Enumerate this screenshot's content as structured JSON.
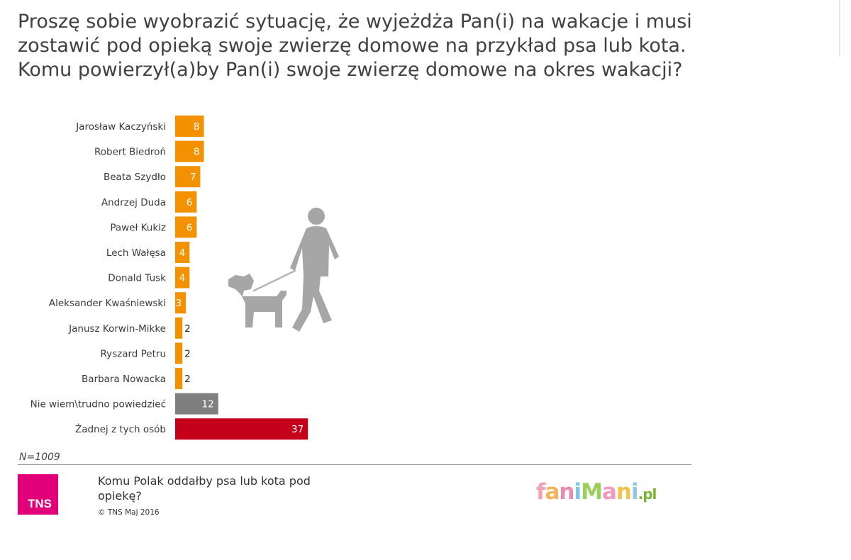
{
  "question": "Proszę sobie wyobrazić sytuację, że wyjeżdża Pan(i) na wakacje i musi zostawić pod opieką swoje zwierzę domowe na przykład psa lub kota. Komu powierzył(a)by Pan(i) swoje zwierzę domowe na okres wakacji?",
  "colors": {
    "orange": "#f39100",
    "gray": "#7f7f7f",
    "red": "#c5001a"
  },
  "icons": {
    "silhouette": "man-walking-dog-icon"
  },
  "chart_data": {
    "type": "bar",
    "orientation": "horizontal",
    "title": "Proszę sobie wyobrazić sytuację, że wyjeżdża Pan(i) na wakacje i musi zostawić pod opieką swoje zwierzę domowe na przykład psa lub kota. Komu powierzył(a)by Pan(i) swoje zwierzę domowe na okres wakacji?",
    "categories": [
      "Jarosław Kaczyński",
      "Robert Biedroń",
      "Beata Szydło",
      "Andrzej Duda",
      "Paweł Kukiz",
      "Lech Wałęsa",
      "Donald Tusk",
      "Aleksander Kwaśniewski",
      "Janusz Korwin-Mikke",
      "Ryszard Petru",
      "Barbara Nowacka",
      "Nie wiem\\trudno powiedzieć",
      "Żadnej z tych osób"
    ],
    "values": [
      8,
      8,
      7,
      6,
      6,
      4,
      4,
      3,
      2,
      2,
      2,
      12,
      37
    ],
    "bar_colors": [
      "#f39100",
      "#f39100",
      "#f39100",
      "#f39100",
      "#f39100",
      "#f39100",
      "#f39100",
      "#f39100",
      "#f39100",
      "#f39100",
      "#f39100",
      "#7f7f7f",
      "#c5001a"
    ],
    "xlim": [
      0,
      37
    ],
    "grid": false
  },
  "footer": {
    "n": "N=1009",
    "subtitle": "Komu Polak oddałby psa lub kota pod opiekę?",
    "copyright": "© TNS Maj 2016",
    "tns_logo_text": "TNS",
    "brand_main": "faniMani",
    "brand_suffix": ".pl"
  }
}
